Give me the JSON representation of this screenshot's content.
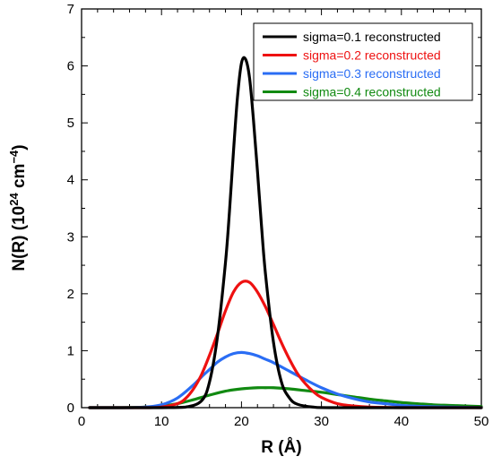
{
  "chart_data": {
    "type": "line",
    "xlabel": "R (Å)",
    "ylabel": {
      "base": "N(R) (10",
      "sup1": "24",
      "mid": " cm",
      "sup2": "−4",
      "end": ")"
    },
    "xlim": [
      0,
      50
    ],
    "ylim": [
      0,
      7
    ],
    "xticks": [
      0,
      10,
      20,
      30,
      40,
      50
    ],
    "yticks": [
      0,
      1,
      2,
      3,
      4,
      5,
      6,
      7
    ],
    "grid": false,
    "legend_position": "top-right",
    "series": [
      {
        "name": "sigma=0.1 reconstructed",
        "color": "#000000",
        "x": [
          1,
          10,
          13,
          15,
          16,
          17,
          18,
          18.5,
          19,
          19.5,
          20,
          20.5,
          21,
          21.5,
          22,
          22.5,
          23,
          24,
          25,
          26,
          27,
          29,
          32,
          50
        ],
        "y": [
          0,
          0,
          0.01,
          0.12,
          0.45,
          1.25,
          2.55,
          3.45,
          4.5,
          5.45,
          6.05,
          6.12,
          5.8,
          5.05,
          4.15,
          3.2,
          2.35,
          1.15,
          0.45,
          0.17,
          0.06,
          0.01,
          0,
          0
        ]
      },
      {
        "name": "sigma=0.2 reconstructed",
        "color": "#ee1111",
        "x": [
          1,
          8,
          10,
          12,
          13,
          14,
          15,
          16,
          17,
          18,
          19,
          20,
          21,
          22,
          23,
          24,
          25,
          26,
          27,
          28,
          29,
          30,
          32,
          34,
          36,
          40,
          50
        ],
        "y": [
          0,
          0,
          0.01,
          0.07,
          0.16,
          0.33,
          0.58,
          0.92,
          1.3,
          1.7,
          2.03,
          2.2,
          2.2,
          2.03,
          1.77,
          1.46,
          1.14,
          0.85,
          0.6,
          0.42,
          0.28,
          0.18,
          0.07,
          0.03,
          0.01,
          0,
          0
        ]
      },
      {
        "name": "sigma=0.3 reconstructed",
        "color": "#2a6df4",
        "x": [
          1,
          6,
          8,
          10,
          12,
          14,
          15,
          16,
          17,
          18,
          19,
          20,
          21,
          22,
          23,
          24,
          26,
          28,
          30,
          32,
          34,
          36,
          38,
          40,
          43,
          46,
          50
        ],
        "y": [
          0,
          0,
          0.01,
          0.05,
          0.17,
          0.4,
          0.54,
          0.67,
          0.8,
          0.89,
          0.95,
          0.97,
          0.95,
          0.91,
          0.85,
          0.79,
          0.64,
          0.49,
          0.35,
          0.24,
          0.16,
          0.1,
          0.07,
          0.04,
          0.02,
          0.01,
          0
        ]
      },
      {
        "name": "sigma=0.4 reconstructed",
        "color": "#118a11",
        "x": [
          1,
          5,
          8,
          10,
          12,
          14,
          16,
          18,
          20,
          22,
          23,
          24,
          26,
          28,
          30,
          32,
          34,
          36,
          38,
          40,
          42,
          44,
          46,
          48,
          50
        ],
        "y": [
          0,
          0,
          0.01,
          0.03,
          0.07,
          0.14,
          0.22,
          0.29,
          0.33,
          0.35,
          0.35,
          0.35,
          0.33,
          0.3,
          0.27,
          0.23,
          0.19,
          0.15,
          0.12,
          0.09,
          0.07,
          0.05,
          0.04,
          0.03,
          0.02
        ]
      }
    ]
  }
}
